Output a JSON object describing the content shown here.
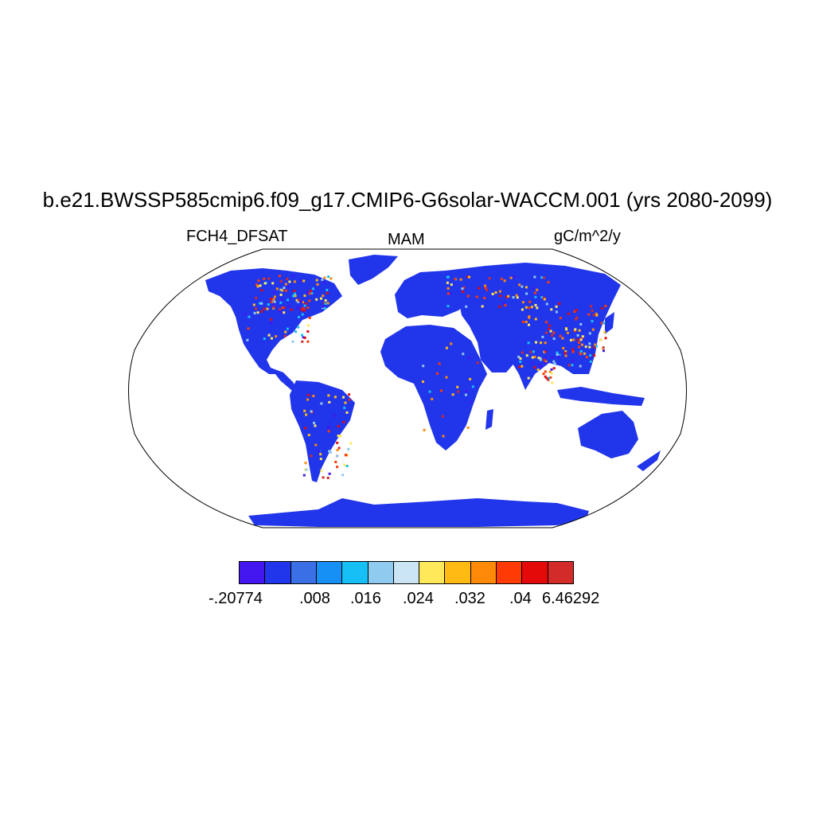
{
  "title": "b.e21.BWSSP585cmip6.f09_g17.CMIP6-G6solar-WACCM.001 (yrs 2080-2099)",
  "left_label": "FCH4_DFSAT",
  "center_label": "MAM",
  "right_label": "gC/m^2/y",
  "map": {
    "projection": "Robinson",
    "ocean_color": "#ffffff",
    "land_base_color": "#2135ea",
    "outline_color": "#000000"
  },
  "colorbar": {
    "colors": [
      "#4416f0",
      "#2135ea",
      "#3a6fe6",
      "#1790f5",
      "#17bff7",
      "#8fcaef",
      "#cbe5f5",
      "#ffe95a",
      "#ffbb14",
      "#ff8a0a",
      "#ff3a05",
      "#e40a0a",
      "#d32a2a"
    ],
    "labels": [
      "-.20774",
      ".008",
      ".016",
      ".024",
      ".032",
      ".04",
      "6.46292"
    ]
  }
}
